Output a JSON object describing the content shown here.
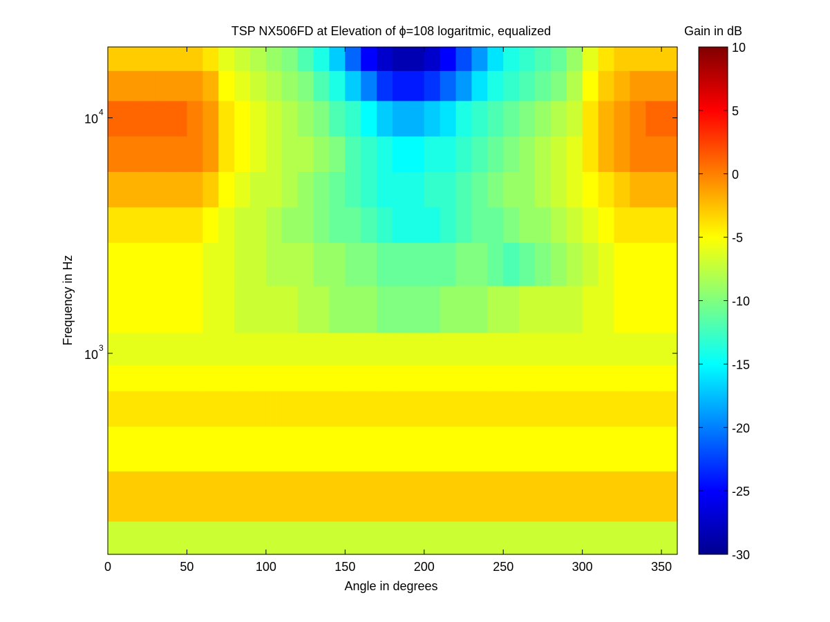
{
  "chart_data": {
    "type": "heatmap",
    "title": "TSP NX506FD at Elevation of ϕ=108 logaritmic, equalized",
    "xlabel": "Angle in degrees",
    "ylabel": "Frequency in Hz",
    "colorbar_label": "Gain in dB",
    "x_range": [
      0,
      360
    ],
    "x_ticks": [
      0,
      50,
      100,
      150,
      200,
      250,
      300,
      350
    ],
    "y_scale": "log",
    "y_range": [
      140,
      20000
    ],
    "y_ticks": [
      {
        "base": "10",
        "exponent": "3"
      },
      {
        "base": "10",
        "exponent": "4"
      }
    ],
    "colorbar_range": [
      -30,
      10
    ],
    "colorbar_ticks": [
      10,
      5,
      0,
      -5,
      -10,
      -15,
      -20,
      -25,
      -30
    ],
    "colormap": "jet",
    "angles_deg": [
      0,
      10,
      20,
      30,
      40,
      50,
      60,
      70,
      80,
      90,
      100,
      110,
      120,
      130,
      140,
      150,
      160,
      170,
      180,
      190,
      200,
      210,
      220,
      230,
      240,
      250,
      260,
      270,
      280,
      290,
      300,
      310,
      320,
      330,
      340,
      350
    ],
    "frequency_bands_hz": [
      150,
      250,
      400,
      600,
      800,
      1000,
      1500,
      2500,
      3500,
      5000,
      7000,
      10000,
      14000,
      18000
    ],
    "gain_db": [
      [
        -7,
        -7,
        -7,
        -7,
        -7,
        -7,
        -7,
        -7,
        -7,
        -7,
        -7,
        -7,
        -7,
        -7,
        -7,
        -7,
        -7,
        -7,
        -7,
        -7,
        -7,
        -7,
        -7,
        -7,
        -7,
        -7,
        -7,
        -7,
        -7,
        -7,
        -7,
        -7,
        -7,
        -7,
        -7,
        -7
      ],
      [
        -3,
        -3,
        -3,
        -3,
        -3,
        -3,
        -3,
        -3,
        -3,
        -3,
        -3,
        -3,
        -3,
        -3,
        -3,
        -3,
        -3,
        -3,
        -3,
        -3,
        -3,
        -3,
        -3,
        -3,
        -3,
        -3,
        -3,
        -3,
        -3,
        -3,
        -3,
        -3,
        -3,
        -3,
        -3,
        -3
      ],
      [
        -5,
        -5,
        -5,
        -5,
        -5,
        -5,
        -5,
        -5,
        -5,
        -5,
        -5,
        -5,
        -5,
        -5,
        -5,
        -5,
        -5,
        -5,
        -5,
        -5,
        -5,
        -5,
        -5,
        -5,
        -5,
        -5,
        -5,
        -5,
        -5,
        -5,
        -5,
        -5,
        -5,
        -5,
        -5,
        -5
      ],
      [
        -4,
        -4,
        -4,
        -4,
        -4,
        -4,
        -4,
        -4,
        -4,
        -4,
        -4,
        -4,
        -4,
        -4,
        -4,
        -4,
        -4,
        -4,
        -4,
        -4,
        -4,
        -4,
        -4,
        -4,
        -4,
        -4,
        -4,
        -4,
        -4,
        -4,
        -4,
        -4,
        -4,
        -4,
        -4,
        -4
      ],
      [
        -5,
        -5,
        -5,
        -5,
        -5,
        -5,
        -5,
        -5,
        -5,
        -5,
        -5,
        -5,
        -5,
        -5,
        -5,
        -5,
        -5,
        -5,
        -5,
        -5,
        -5,
        -5,
        -5,
        -5,
        -5,
        -5,
        -5,
        -5,
        -5,
        -5,
        -5,
        -5,
        -5,
        -5,
        -5,
        -5
      ],
      [
        -6,
        -6,
        -6,
        -6,
        -6,
        -6,
        -6,
        -6,
        -6,
        -6,
        -6,
        -6,
        -6,
        -6,
        -6,
        -6,
        -6,
        -6,
        -6,
        -6,
        -6,
        -6,
        -6,
        -6,
        -6,
        -6,
        -6,
        -6,
        -6,
        -6,
        -6,
        -6,
        -6,
        -6,
        -6,
        -6
      ],
      [
        -5,
        -5,
        -5,
        -5,
        -5,
        -5,
        -6,
        -6,
        -7,
        -7,
        -7,
        -7,
        -8,
        -8,
        -9,
        -9,
        -9,
        -10,
        -10,
        -10,
        -10,
        -9,
        -9,
        -9,
        -8,
        -8,
        -7,
        -7,
        -7,
        -7,
        -6,
        -6,
        -5,
        -5,
        -5,
        -5
      ],
      [
        -5,
        -5,
        -5,
        -5,
        -5,
        -5,
        -6,
        -6,
        -7,
        -7,
        -8,
        -8,
        -8,
        -9,
        -9,
        -10,
        -10,
        -11,
        -11,
        -11,
        -11,
        -11,
        -10,
        -10,
        -11,
        -12,
        -11,
        -10,
        -9,
        -8,
        -7,
        -6,
        -5,
        -5,
        -5,
        -5
      ],
      [
        -4,
        -4,
        -4,
        -4,
        -4,
        -4,
        -5,
        -6,
        -7,
        -7,
        -8,
        -9,
        -9,
        -10,
        -11,
        -11,
        -12,
        -13,
        -14,
        -14,
        -14,
        -13,
        -12,
        -11,
        -11,
        -10,
        -9,
        -9,
        -8,
        -7,
        -6,
        -5,
        -4,
        -4,
        -4,
        -4
      ],
      [
        -2,
        -2,
        -2,
        -2,
        -2,
        -2,
        -3,
        -5,
        -6,
        -7,
        -7,
        -8,
        -9,
        -10,
        -11,
        -12,
        -13,
        -14,
        -14,
        -14,
        -13,
        -13,
        -12,
        -11,
        -10,
        -9,
        -9,
        -8,
        -7,
        -6,
        -5,
        -4,
        -3,
        -2,
        -2,
        -2
      ],
      [
        0,
        0,
        0,
        0,
        0,
        0,
        -1,
        -4,
        -5,
        -6,
        -7,
        -8,
        -8,
        -9,
        -10,
        -12,
        -13,
        -14,
        -15,
        -15,
        -14,
        -14,
        -13,
        -12,
        -11,
        -10,
        -9,
        -8,
        -7,
        -6,
        -4,
        -2,
        -1,
        0,
        0,
        0
      ],
      [
        1,
        1,
        1,
        1,
        1,
        0,
        -1,
        -4,
        -5,
        -6,
        -7,
        -8,
        -9,
        -10,
        -12,
        -13,
        -15,
        -17,
        -18,
        -18,
        -17,
        -16,
        -14,
        -13,
        -12,
        -11,
        -10,
        -9,
        -8,
        -7,
        -4,
        -2,
        -1,
        0,
        1,
        1
      ],
      [
        -1,
        -1,
        -1,
        -1,
        -1,
        -1,
        -2,
        -5,
        -6,
        -7,
        -8,
        -9,
        -10,
        -12,
        -14,
        -17,
        -20,
        -23,
        -24,
        -24,
        -23,
        -21,
        -19,
        -16,
        -14,
        -13,
        -12,
        -11,
        -10,
        -8,
        -5,
        -3,
        -2,
        -1,
        -1,
        -1
      ],
      [
        -3,
        -3,
        -3,
        -3,
        -3,
        -3,
        -4,
        -6,
        -7,
        -8,
        -9,
        -10,
        -12,
        -14,
        -17,
        -21,
        -25,
        -27,
        -28,
        -28,
        -27,
        -25,
        -22,
        -19,
        -16,
        -14,
        -13,
        -12,
        -11,
        -9,
        -6,
        -4,
        -3,
        -3,
        -3,
        -3
      ]
    ]
  }
}
